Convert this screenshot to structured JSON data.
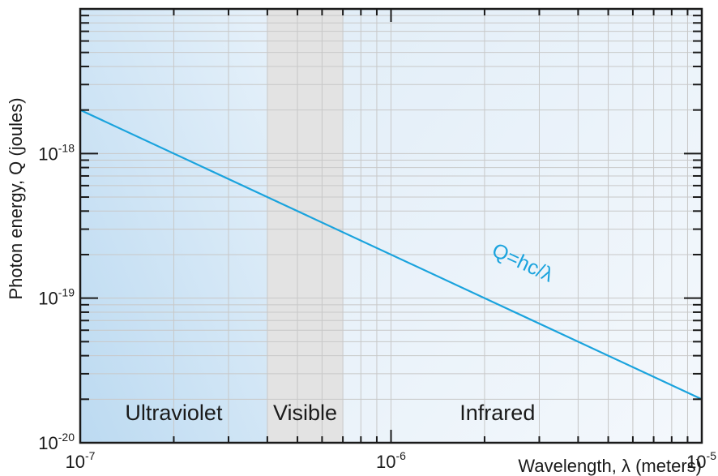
{
  "chart_data": {
    "type": "line",
    "title": "",
    "xlabel": "Wavelength, λ (meters)",
    "ylabel": "Photon energy, Q (joules)",
    "xscale": "log",
    "yscale": "log",
    "xlim": [
      1e-07,
      1e-05
    ],
    "ylim": [
      1e-20,
      1e-17
    ],
    "grid": true,
    "x_ticks": [
      {
        "base": "10",
        "exp": "-7",
        "value": 1e-07
      },
      {
        "base": "10",
        "exp": "-6",
        "value": 1e-06
      },
      {
        "base": "10",
        "exp": "-5",
        "value": 1e-05
      }
    ],
    "y_ticks": [
      {
        "base": "10",
        "exp": "-20",
        "value": 1e-20
      },
      {
        "base": "10",
        "exp": "-19",
        "value": 1e-19
      },
      {
        "base": "10",
        "exp": "-18",
        "value": 1e-18
      }
    ],
    "series": [
      {
        "name": "Q=hc/λ",
        "color": "#1aa3dd",
        "x": [
          1e-07,
          1e-05
        ],
        "y": [
          2e-18,
          2e-20
        ]
      }
    ],
    "regions": [
      {
        "label": "Ultraviolet",
        "x_range": [
          1e-07,
          4e-07
        ]
      },
      {
        "label": "Visible",
        "x_range": [
          4e-07,
          7e-07
        ]
      },
      {
        "label": "Infrared",
        "x_range": [
          7e-07,
          1e-05
        ]
      }
    ],
    "annotations": [
      {
        "text": "Q=hc/λ",
        "x": 2.6e-06,
        "y": 1.6e-19
      }
    ]
  },
  "colors": {
    "uv_shade": "#c6e0f2",
    "visible_shade": "#e3e3e3",
    "infrared_shade": "#eef5fb",
    "line": "#1aa3dd",
    "grid": "#c8c8c8",
    "frame": "#1a1a1a"
  }
}
